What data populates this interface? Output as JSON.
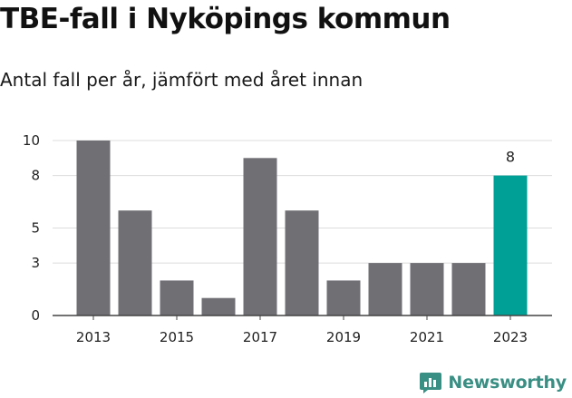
{
  "title": "TBE-fall i Nyköpings kommun",
  "subtitle": "Antal fall per år, jämfört med året innan",
  "brand": {
    "name": "Newsworthy",
    "logo_icon": "newsworthy-chart-icon",
    "color": "#3a8f84"
  },
  "chart_data": {
    "type": "bar",
    "categories": [
      "2013",
      "2014",
      "2015",
      "2016",
      "2017",
      "2018",
      "2019",
      "2020",
      "2021",
      "2022",
      "2023"
    ],
    "values": [
      10,
      6,
      2,
      1,
      9,
      6,
      2,
      3,
      3,
      3,
      8
    ],
    "x_tick_labels": [
      "2013",
      "2015",
      "2017",
      "2019",
      "2021",
      "2023"
    ],
    "y_ticks": [
      0,
      3,
      5,
      8,
      10
    ],
    "ylim": [
      0,
      10
    ],
    "grid": true,
    "data_labels": [
      {
        "category": "2023",
        "text": "8"
      }
    ],
    "colors": {
      "default": "#706f74",
      "highlight": "#00a096"
    },
    "highlight_category": "2023",
    "title": "",
    "xlabel": "",
    "ylabel": ""
  }
}
